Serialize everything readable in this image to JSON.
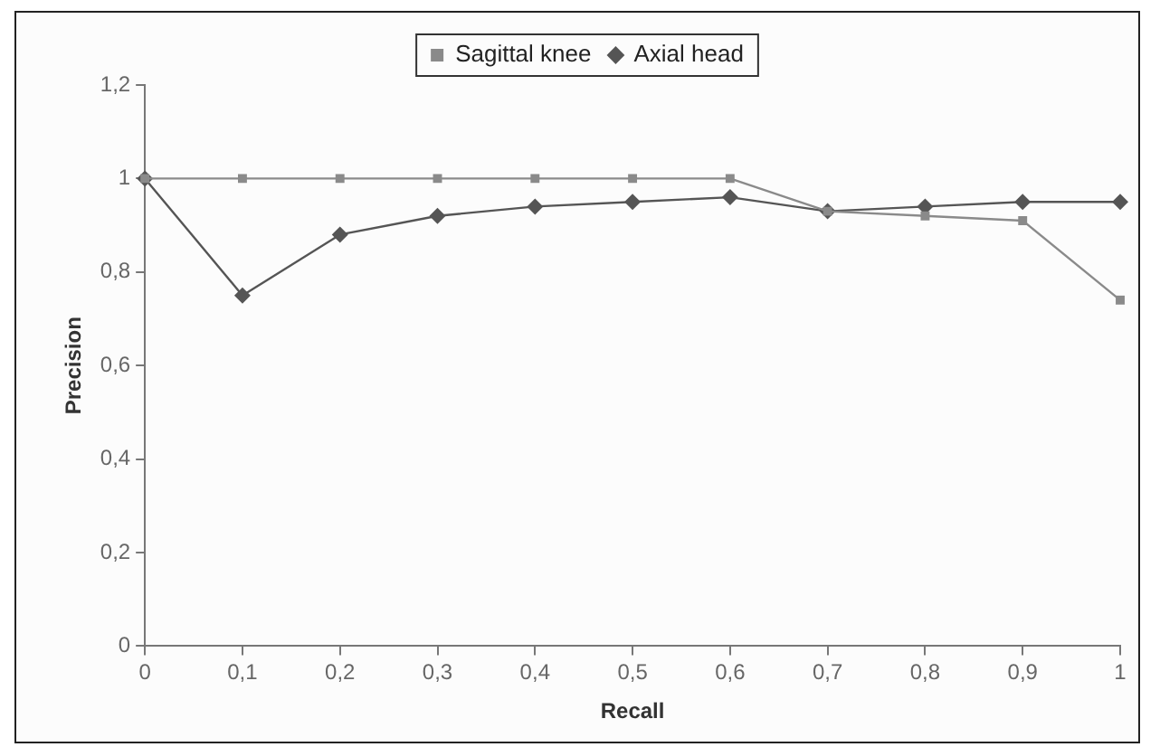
{
  "chart_data": {
    "type": "line",
    "xlabel": "Recall",
    "ylabel": "Precision",
    "categories": [
      "0",
      "0,1",
      "0,2",
      "0,3",
      "0,4",
      "0,5",
      "0,6",
      "0,7",
      "0,8",
      "0,9",
      "1"
    ],
    "series": [
      {
        "name": "Sagittal knee",
        "color": "#8a8a8a",
        "marker": "square",
        "values": [
          1,
          1,
          1,
          1,
          1,
          1,
          1,
          0.93,
          0.92,
          0.91,
          0.74
        ]
      },
      {
        "name": "Axial head",
        "color": "#555555",
        "marker": "diamond",
        "values": [
          1,
          0.75,
          0.88,
          0.92,
          0.94,
          0.95,
          0.96,
          0.93,
          0.94,
          0.95,
          0.95
        ]
      }
    ],
    "ylim": [
      0,
      1.2
    ],
    "yticks": [
      0,
      {
        "value": 0.2,
        "label": "0,2"
      },
      {
        "value": 0.4,
        "label": "0,4"
      },
      {
        "value": 0.6,
        "label": "0,6"
      },
      {
        "value": 0.8,
        "label": "0,8"
      },
      1,
      {
        "value": 1.2,
        "label": "1,2"
      }
    ],
    "grid": false,
    "legend": "top",
    "line_style": "solid"
  }
}
